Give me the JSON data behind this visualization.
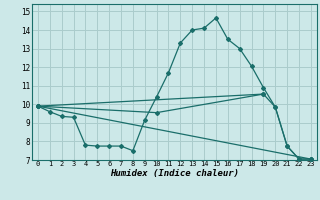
{
  "xlabel": "Humidex (Indice chaleur)",
  "ylabel": "",
  "bg_color": "#cce8e8",
  "line_color": "#1a6e6a",
  "grid_color": "#aacccc",
  "xlim": [
    -0.5,
    23.5
  ],
  "ylim": [
    7,
    15.4
  ],
  "xticks": [
    0,
    1,
    2,
    3,
    4,
    5,
    6,
    7,
    8,
    9,
    10,
    11,
    12,
    13,
    14,
    15,
    16,
    17,
    18,
    19,
    20,
    21,
    22,
    23
  ],
  "yticks": [
    7,
    8,
    9,
    10,
    11,
    12,
    13,
    14,
    15
  ],
  "line1_x": [
    0,
    1,
    2,
    3,
    4,
    5,
    6,
    7,
    8,
    9,
    10,
    11,
    12,
    13,
    14,
    15,
    16,
    17,
    18,
    19,
    20,
    21,
    22,
    23
  ],
  "line1_y": [
    9.9,
    9.6,
    9.35,
    9.3,
    7.8,
    7.75,
    7.75,
    7.75,
    7.5,
    9.15,
    10.4,
    11.7,
    13.3,
    14.0,
    14.1,
    14.65,
    13.5,
    13.0,
    12.05,
    10.9,
    9.85,
    7.75,
    7.05,
    7.05
  ],
  "line2_x": [
    0,
    23
  ],
  "line2_y": [
    9.9,
    7.05
  ],
  "line3_x": [
    0,
    10,
    19,
    20,
    21,
    22,
    23
  ],
  "line3_y": [
    9.9,
    9.55,
    10.55,
    9.85,
    7.75,
    7.05,
    7.05
  ],
  "line4_x": [
    0,
    19
  ],
  "line4_y": [
    9.9,
    10.55
  ]
}
